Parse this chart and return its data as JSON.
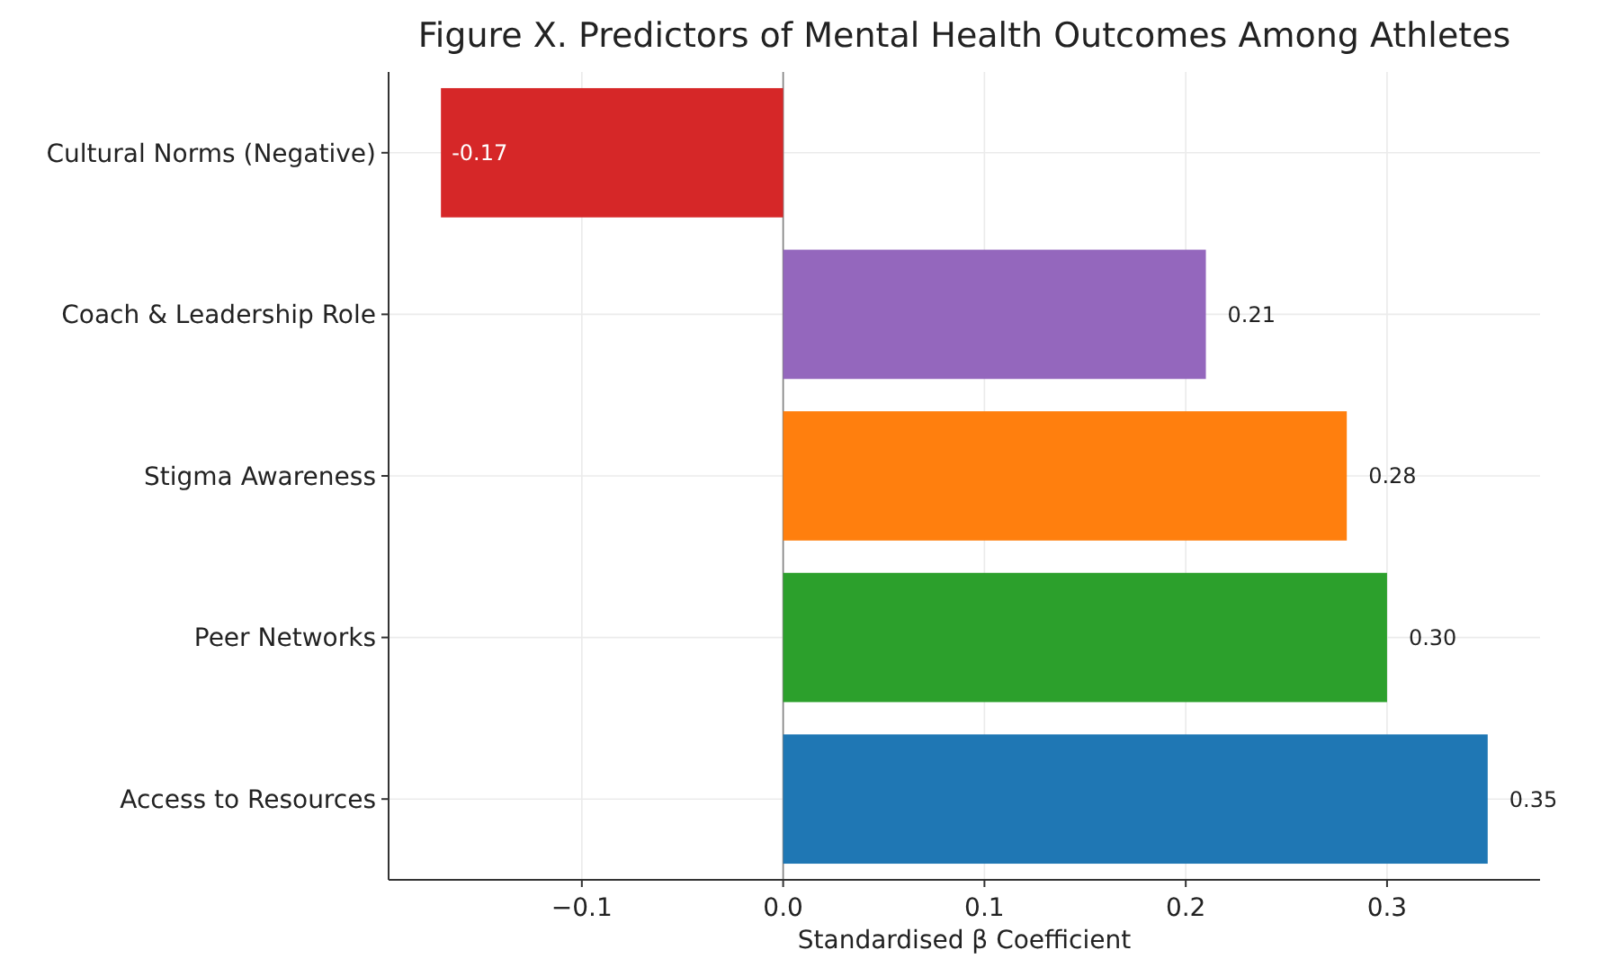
{
  "chart_data": {
    "type": "bar",
    "orientation": "horizontal",
    "title": "Figure X. Predictors of Mental Health Outcomes Among Athletes",
    "xlabel": "Standardised β Coefficient",
    "categories": [
      "Cultural Norms (Negative)",
      "Coach & Leadership Role",
      "Stigma Awareness",
      "Peer Networks",
      "Access to Resources"
    ],
    "values": [
      -0.17,
      0.21,
      0.28,
      0.3,
      0.35
    ],
    "colors": [
      "#d62728",
      "#9467bd",
      "#ff7f0e",
      "#2ca02c",
      "#1f77b4"
    ],
    "value_labels": [
      "-0.17",
      "0.21",
      "0.28",
      "0.30",
      "0.35"
    ],
    "xlim": [
      -0.196,
      0.376
    ],
    "xticks": [
      {
        "value": -0.1,
        "label": "−0.1"
      },
      {
        "value": 0,
        "label": "0.0"
      },
      {
        "value": 0.1,
        "label": "0.1"
      },
      {
        "value": 0.2,
        "label": "0.2"
      },
      {
        "value": 0.3,
        "label": "0.3"
      }
    ],
    "ref_lines": [
      {
        "axis": "x",
        "value": 0,
        "color": "#808080"
      }
    ],
    "grid": true
  }
}
